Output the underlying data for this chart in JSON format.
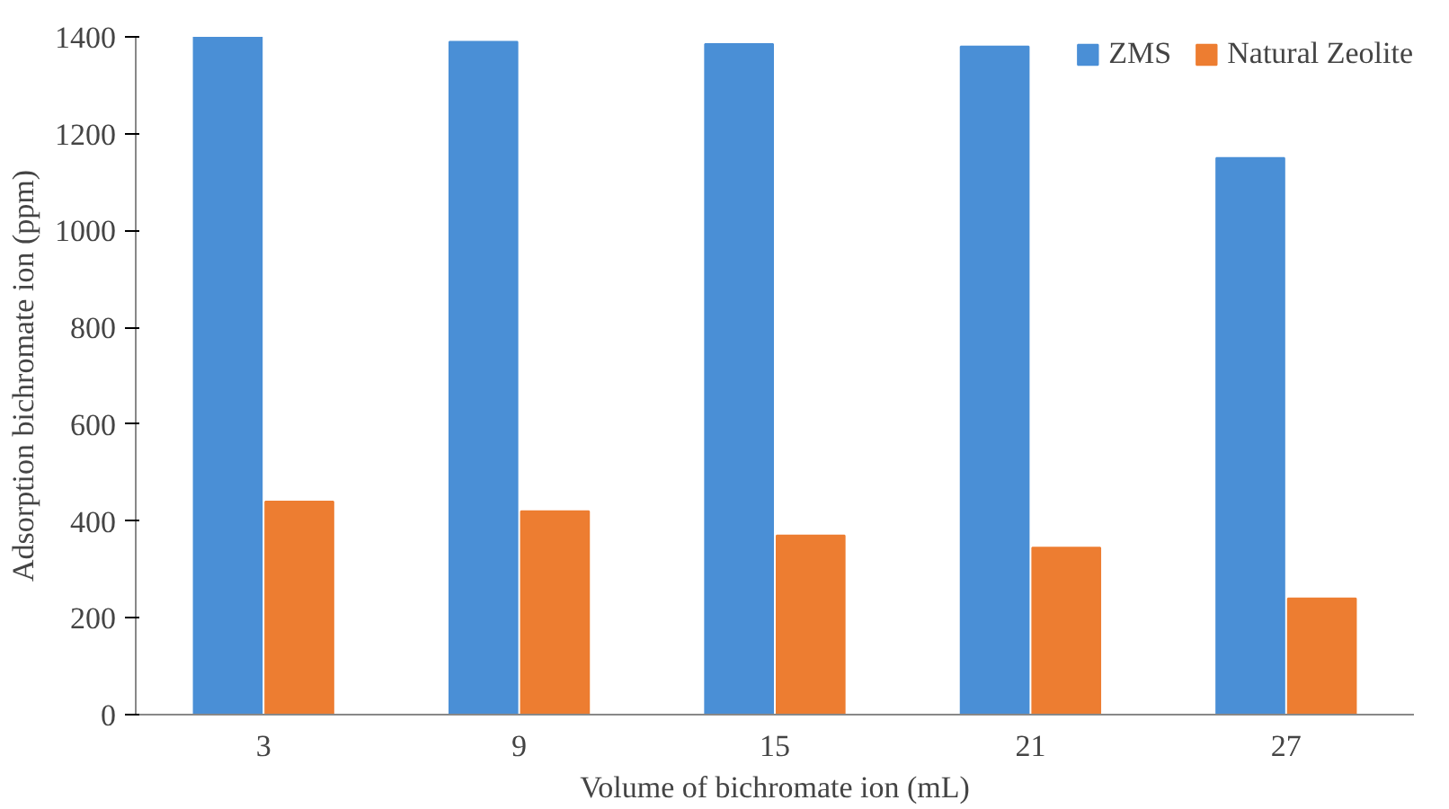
{
  "chart_data": {
    "type": "bar",
    "xlabel": "Volume of bichromate ion (mL)",
    "ylabel": "Adsorption bichromate ion (ppm)",
    "categories": [
      "3",
      "9",
      "15",
      "21",
      "27"
    ],
    "series": [
      {
        "name": "ZMS",
        "color": "#4a8fd6",
        "values": [
          1400,
          1390,
          1385,
          1380,
          1150
        ]
      },
      {
        "name": "Natural Zeolite",
        "color": "#ed7d31",
        "values": [
          440,
          420,
          370,
          345,
          240
        ]
      }
    ],
    "ylim": [
      0,
      1400
    ],
    "yticks": [
      0,
      200,
      400,
      600,
      800,
      1000,
      1200,
      1400
    ],
    "grid": false,
    "legend": "top right"
  }
}
